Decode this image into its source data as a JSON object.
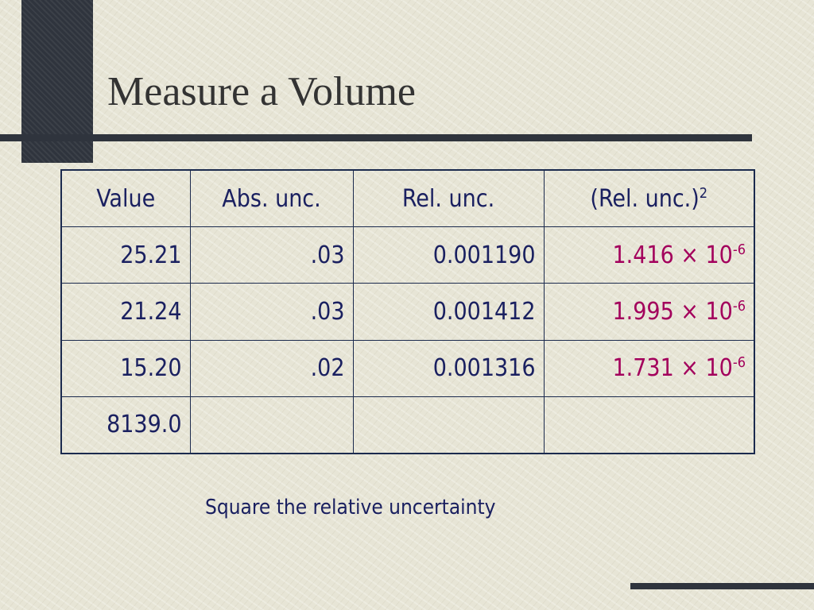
{
  "title": "Measure a Volume",
  "table": {
    "header": [
      "Value",
      "Abs. unc.",
      "Rel. unc.",
      {
        "text": "(Rel. unc.)",
        "sup": "2"
      }
    ],
    "rows": [
      [
        "25.21",
        ".03",
        "0.001190",
        {
          "text": "1.416 × 10",
          "sup": "-6"
        }
      ],
      [
        "21.24",
        ".03",
        "0.001412",
        {
          "text": "1.995 × 10",
          "sup": "-6"
        }
      ],
      [
        "15.20",
        ".02",
        "0.001316",
        {
          "text": "1.731 × 10",
          "sup": "-6"
        }
      ],
      [
        "8139.0"
      ]
    ]
  },
  "note": "Square the relative uncertainty"
}
